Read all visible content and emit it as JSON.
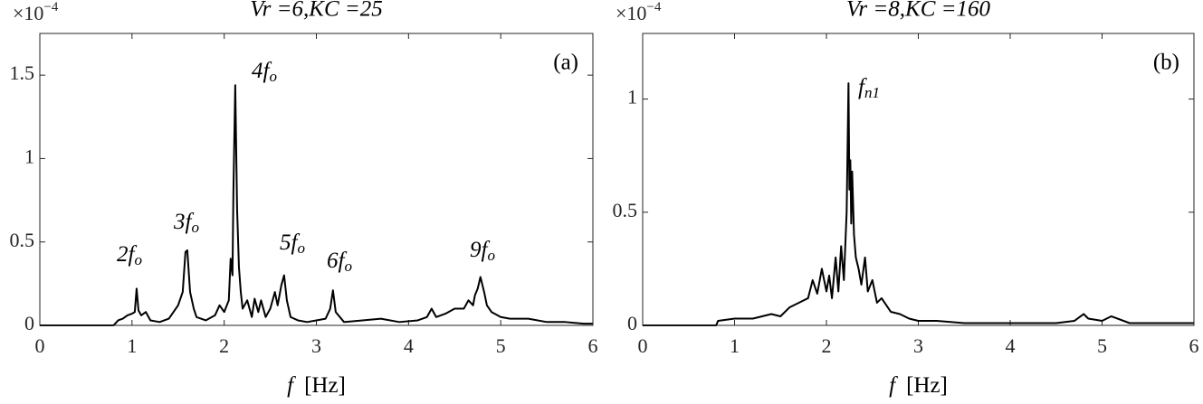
{
  "chart_data": [
    {
      "type": "line",
      "title": "Vr =6,KC =25",
      "panel_label": "(a)",
      "xlabel_symbol": "f",
      "xlabel_unit": "[Hz]",
      "y_multiplier": "×10",
      "y_exponent": "−4",
      "xlim": [
        0,
        6
      ],
      "ylim": [
        0,
        1.75
      ],
      "xticks": [
        0,
        1,
        2,
        3,
        4,
        5,
        6
      ],
      "yticks": [
        0,
        0.5,
        1,
        1.5
      ],
      "annotations": [
        {
          "text": "2f",
          "sub": "o"
        },
        {
          "text": "3f",
          "sub": "o"
        },
        {
          "text": "4f",
          "sub": "o"
        },
        {
          "text": "5f",
          "sub": "o"
        },
        {
          "text": "6f",
          "sub": "o"
        },
        {
          "text": "9f",
          "sub": "o"
        }
      ],
      "series": [
        {
          "color": "#000000",
          "x": [
            0,
            0.5,
            0.8,
            0.85,
            0.9,
            0.95,
            1.0,
            1.03,
            1.05,
            1.07,
            1.1,
            1.15,
            1.2,
            1.3,
            1.4,
            1.45,
            1.5,
            1.55,
            1.58,
            1.6,
            1.63,
            1.67,
            1.7,
            1.8,
            1.9,
            1.95,
            2.0,
            2.05,
            2.07,
            2.09,
            2.1,
            2.12,
            2.14,
            2.16,
            2.18,
            2.2,
            2.25,
            2.3,
            2.33,
            2.37,
            2.4,
            2.45,
            2.5,
            2.55,
            2.58,
            2.62,
            2.65,
            2.68,
            2.72,
            2.8,
            2.9,
            3.0,
            3.1,
            3.15,
            3.18,
            3.21,
            3.3,
            3.5,
            3.7,
            3.9,
            4.1,
            4.2,
            4.25,
            4.3,
            4.4,
            4.5,
            4.6,
            4.65,
            4.7,
            4.72,
            4.75,
            4.78,
            4.82,
            4.85,
            4.9,
            5.0,
            5.1,
            5.3,
            5.5,
            5.7,
            5.9,
            6.0
          ],
          "values": [
            0,
            0,
            0,
            0.03,
            0.04,
            0.06,
            0.07,
            0.08,
            0.22,
            0.09,
            0.06,
            0.08,
            0.03,
            0.02,
            0.04,
            0.08,
            0.12,
            0.2,
            0.44,
            0.45,
            0.2,
            0.1,
            0.05,
            0.03,
            0.06,
            0.12,
            0.08,
            0.15,
            0.4,
            0.3,
            0.8,
            1.44,
            0.7,
            0.35,
            0.2,
            0.1,
            0.15,
            0.05,
            0.16,
            0.08,
            0.15,
            0.05,
            0.1,
            0.2,
            0.12,
            0.24,
            0.3,
            0.15,
            0.05,
            0.03,
            0.02,
            0.03,
            0.04,
            0.1,
            0.21,
            0.08,
            0.02,
            0.03,
            0.04,
            0.02,
            0.03,
            0.05,
            0.1,
            0.05,
            0.07,
            0.1,
            0.1,
            0.15,
            0.12,
            0.18,
            0.22,
            0.29,
            0.2,
            0.12,
            0.08,
            0.05,
            0.04,
            0.04,
            0.02,
            0.02,
            0.01,
            0.01
          ]
        }
      ]
    },
    {
      "type": "line",
      "title": "Vr =8,KC =160",
      "panel_label": "(b)",
      "xlabel_symbol": "f",
      "xlabel_unit": "[Hz]",
      "y_multiplier": "×10",
      "y_exponent": "−4",
      "xlim": [
        0,
        6
      ],
      "ylim": [
        0,
        1.29
      ],
      "xticks": [
        0,
        1,
        2,
        3,
        4,
        5,
        6
      ],
      "yticks": [
        0,
        0.5,
        1
      ],
      "annotations": [
        {
          "text": "f",
          "sub": "n1"
        }
      ],
      "series": [
        {
          "color": "#000000",
          "x": [
            0,
            0.8,
            0.82,
            1.0,
            1.2,
            1.4,
            1.5,
            1.6,
            1.7,
            1.8,
            1.85,
            1.9,
            1.95,
            2.0,
            2.03,
            2.06,
            2.1,
            2.13,
            2.16,
            2.19,
            2.22,
            2.24,
            2.25,
            2.26,
            2.27,
            2.28,
            2.3,
            2.32,
            2.35,
            2.38,
            2.42,
            2.45,
            2.5,
            2.55,
            2.6,
            2.7,
            2.8,
            2.9,
            3.0,
            3.2,
            3.5,
            4.0,
            4.5,
            4.7,
            4.8,
            4.85,
            5.0,
            5.1,
            5.3,
            6.0
          ],
          "values": [
            0,
            0,
            0.02,
            0.03,
            0.03,
            0.05,
            0.04,
            0.08,
            0.1,
            0.12,
            0.2,
            0.14,
            0.25,
            0.15,
            0.22,
            0.12,
            0.3,
            0.15,
            0.35,
            0.2,
            0.5,
            1.07,
            0.6,
            0.73,
            0.45,
            0.68,
            0.4,
            0.3,
            0.25,
            0.18,
            0.3,
            0.15,
            0.2,
            0.1,
            0.12,
            0.06,
            0.05,
            0.03,
            0.02,
            0.02,
            0.01,
            0.01,
            0.01,
            0.02,
            0.05,
            0.03,
            0.02,
            0.04,
            0.01,
            0.01
          ]
        }
      ]
    }
  ]
}
